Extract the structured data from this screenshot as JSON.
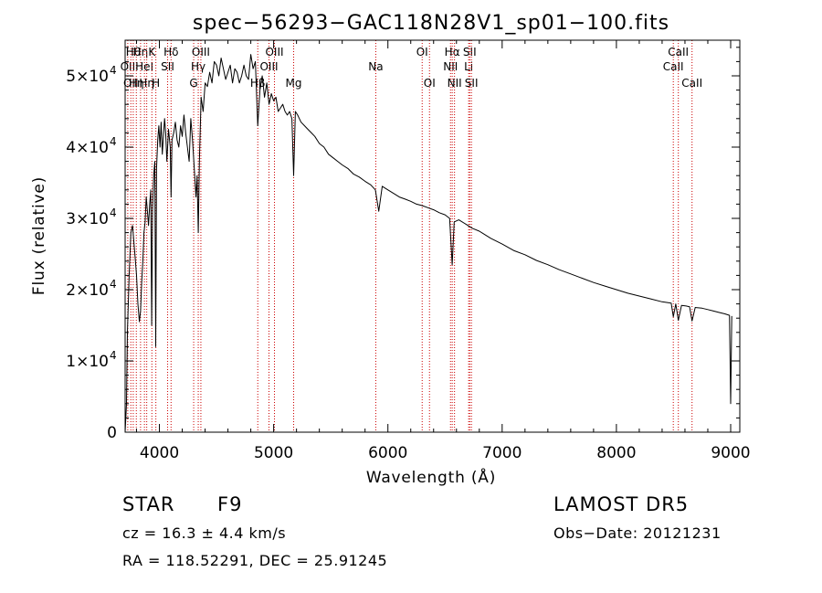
{
  "chart_data": {
    "type": "line",
    "title": "spec−56293−GAC118N28V1_sp01−100.fits",
    "xlabel": "Wavelength (Å)",
    "ylabel": "Flux (relative)",
    "xlim": [
      3700,
      9080
    ],
    "ylim": [
      0,
      55000
    ],
    "x_ticks": [
      {
        "value": 4000,
        "label": "4000"
      },
      {
        "value": 5000,
        "label": "5000"
      },
      {
        "value": 6000,
        "label": "6000"
      },
      {
        "value": 7000,
        "label": "7000"
      },
      {
        "value": 8000,
        "label": "8000"
      },
      {
        "value": 9000,
        "label": "9000"
      }
    ],
    "y_ticks": [
      {
        "value": 0,
        "mantissa": "0",
        "exp": ""
      },
      {
        "value": 10000,
        "mantissa": "1×10",
        "exp": "4"
      },
      {
        "value": 20000,
        "mantissa": "2×10",
        "exp": "4"
      },
      {
        "value": 30000,
        "mantissa": "3×10",
        "exp": "4"
      },
      {
        "value": 40000,
        "mantissa": "4×10",
        "exp": "4"
      },
      {
        "value": 50000,
        "mantissa": "5×10",
        "exp": "4"
      }
    ],
    "series": [
      {
        "x": [
          3700,
          3712,
          3720,
          3735,
          3750,
          3765,
          3780,
          3790,
          3800,
          3812,
          3825,
          3835,
          3845,
          3855,
          3865,
          3875,
          3885,
          3895,
          3905,
          3915,
          3925,
          3933,
          3940,
          3950,
          3960,
          3968,
          3975,
          3985,
          3995,
          4005,
          4015,
          4025,
          4035,
          4045,
          4055,
          4065,
          4080,
          4095,
          4102,
          4110,
          4125,
          4140,
          4155,
          4170,
          4185,
          4200,
          4215,
          4230,
          4245,
          4260,
          4275,
          4290,
          4305,
          4320,
          4330,
          4340,
          4350,
          4365,
          4383,
          4400,
          4420,
          4440,
          4460,
          4480,
          4500,
          4520,
          4540,
          4560,
          4580,
          4600,
          4620,
          4640,
          4660,
          4680,
          4700,
          4720,
          4740,
          4760,
          4780,
          4800,
          4820,
          4840,
          4861,
          4880,
          4900,
          4920,
          4940,
          4960,
          4980,
          5000,
          5020,
          5040,
          5060,
          5080,
          5100,
          5120,
          5140,
          5160,
          5175,
          5190,
          5210,
          5240,
          5270,
          5300,
          5330,
          5360,
          5400,
          5440,
          5480,
          5520,
          5560,
          5600,
          5650,
          5700,
          5750,
          5800,
          5850,
          5890,
          5920,
          5950,
          6000,
          6050,
          6100,
          6150,
          6200,
          6250,
          6300,
          6350,
          6400,
          6450,
          6500,
          6540,
          6563,
          6580,
          6620,
          6680,
          6740,
          6800,
          6900,
          7000,
          7100,
          7200,
          7300,
          7400,
          7500,
          7600,
          7700,
          7800,
          7900,
          8000,
          8100,
          8200,
          8300,
          8400,
          8480,
          8498,
          8520,
          8542,
          8570,
          8610,
          8640,
          8662,
          8690,
          8750,
          8800,
          8850,
          8900,
          8950,
          8990,
          9000,
          9010
        ],
        "y": [
          0,
          4000,
          14000,
          22000,
          28000,
          29000,
          26000,
          24000,
          22000,
          18000,
          15500,
          17000,
          21000,
          24000,
          28000,
          29500,
          33000,
          31000,
          29000,
          32000,
          34000,
          15000,
          31000,
          36000,
          38000,
          12000,
          37000,
          41000,
          43000,
          40000,
          43500,
          39000,
          41500,
          44000,
          42000,
          38000,
          42500,
          40000,
          33000,
          41000,
          42000,
          43500,
          41000,
          40000,
          43000,
          41500,
          44500,
          42000,
          40000,
          38000,
          44000,
          41000,
          37000,
          33000,
          36000,
          28000,
          38000,
          47000,
          45000,
          49000,
          48500,
          50500,
          49000,
          52000,
          51500,
          50000,
          52500,
          51000,
          49500,
          50500,
          51500,
          49000,
          51000,
          50500,
          49000,
          50000,
          51500,
          50000,
          49500,
          53000,
          51000,
          52000,
          43000,
          48000,
          50000,
          47000,
          49000,
          46000,
          47500,
          46500,
          47000,
          45000,
          45500,
          46000,
          45000,
          44500,
          45000,
          44000,
          36000,
          45000,
          44500,
          43500,
          43000,
          42500,
          42000,
          41500,
          40500,
          40000,
          39000,
          38500,
          38000,
          37500,
          37000,
          36200,
          35800,
          35200,
          34700,
          34000,
          31000,
          34500,
          34000,
          33500,
          33000,
          32700,
          32400,
          32000,
          31800,
          31500,
          31200,
          30800,
          30500,
          30000,
          23500,
          29500,
          29800,
          29200,
          28600,
          28200,
          27200,
          26400,
          25500,
          24900,
          24100,
          23500,
          22800,
          22200,
          21600,
          21000,
          20500,
          20000,
          19500,
          19100,
          18700,
          18300,
          18100,
          16200,
          18000,
          15700,
          17800,
          17700,
          17600,
          15600,
          17500,
          17400,
          17200,
          17000,
          16800,
          16600,
          16400,
          4000,
          16300
        ]
      }
    ],
    "line_markers": [
      {
        "wavelength": 3723,
        "row": 1,
        "label": "OII"
      },
      {
        "wavelength": 3750,
        "row": 2,
        "label": "OII"
      },
      {
        "wavelength": 3771,
        "row": 0,
        "label": "Hθ"
      },
      {
        "wavelength": 3798,
        "row": 2,
        "label": "Hη"
      },
      {
        "wavelength": 3835,
        "row": 0,
        "label": "Hη"
      },
      {
        "wavelength": 3869,
        "row": 1,
        "label": "HeI"
      },
      {
        "wavelength": 3889,
        "row": 2,
        "label": "Hη"
      },
      {
        "wavelength": 3934,
        "row": 0,
        "label": "K"
      },
      {
        "wavelength": 3969,
        "row": 2,
        "label": "H"
      },
      {
        "wavelength": 4072,
        "row": 1,
        "label": "SII"
      },
      {
        "wavelength": 4102,
        "row": 0,
        "label": "Hδ"
      },
      {
        "wavelength": 4300,
        "row": 2,
        "label": "G"
      },
      {
        "wavelength": 4340,
        "row": 1,
        "label": "Hγ"
      },
      {
        "wavelength": 4363,
        "row": 0,
        "label": "OIII"
      },
      {
        "wavelength": 4861,
        "row": 2,
        "label": "Hβ"
      },
      {
        "wavelength": 4959,
        "row": 1,
        "label": "OIII"
      },
      {
        "wavelength": 5007,
        "row": 0,
        "label": "OIII"
      },
      {
        "wavelength": 5175,
        "row": 2,
        "label": "Mg"
      },
      {
        "wavelength": 5894,
        "row": 1,
        "label": "Na"
      },
      {
        "wavelength": 6300,
        "row": 0,
        "label": "OI"
      },
      {
        "wavelength": 6364,
        "row": 2,
        "label": "OI"
      },
      {
        "wavelength": 6548,
        "row": 1,
        "label": "NII"
      },
      {
        "wavelength": 6563,
        "row": 0,
        "label": "Hα"
      },
      {
        "wavelength": 6583,
        "row": 2,
        "label": "NII"
      },
      {
        "wavelength": 6707,
        "row": 1,
        "label": "Li"
      },
      {
        "wavelength": 6716,
        "row": 0,
        "label": "SII"
      },
      {
        "wavelength": 6731,
        "row": 2,
        "label": "SII"
      },
      {
        "wavelength": 8498,
        "row": 1,
        "label": "CaII"
      },
      {
        "wavelength": 8542,
        "row": 0,
        "label": "CaII"
      },
      {
        "wavelength": 8662,
        "row": 2,
        "label": "CaII"
      }
    ]
  },
  "info": {
    "object_class": "STAR",
    "subclass": "F9",
    "survey": "LAMOST DR5",
    "redshift_text": "cz = 16.3 ± 4.4 km/s",
    "obs_date_text": "Obs−Date: 20121231",
    "coords_text": "RA = 118.52291, DEC =  25.91245"
  },
  "colors": {
    "spectrum": "#000000",
    "line_marker": "#cc0000",
    "axes": "#000000",
    "background": "#ffffff"
  }
}
